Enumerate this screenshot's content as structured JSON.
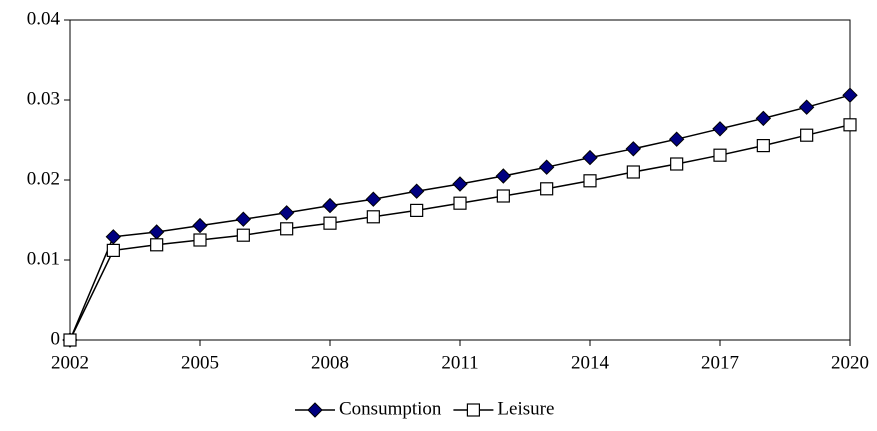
{
  "chart_data": {
    "type": "line",
    "x": [
      2002,
      2003,
      2004,
      2005,
      2006,
      2007,
      2008,
      2009,
      2010,
      2011,
      2012,
      2013,
      2014,
      2015,
      2016,
      2017,
      2018,
      2019,
      2020
    ],
    "series": [
      {
        "name": "Consumption",
        "color": "#000080",
        "marker": "diamond",
        "values": [
          0,
          0.0129,
          0.0135,
          0.0143,
          0.0151,
          0.0159,
          0.0168,
          0.0176,
          0.0186,
          0.0195,
          0.0205,
          0.0216,
          0.0228,
          0.0239,
          0.0251,
          0.0264,
          0.0277,
          0.0291,
          0.0306
        ]
      },
      {
        "name": "Leisure",
        "color": "#ffffff",
        "marker": "square",
        "values": [
          0,
          0.0112,
          0.0119,
          0.0125,
          0.0131,
          0.0139,
          0.0146,
          0.0154,
          0.0162,
          0.0171,
          0.018,
          0.0189,
          0.0199,
          0.021,
          0.022,
          0.0231,
          0.0243,
          0.0256,
          0.0269
        ]
      }
    ],
    "xlim": [
      2002,
      2020
    ],
    "xticks": [
      2002,
      2005,
      2008,
      2011,
      2014,
      2017,
      2020
    ],
    "ylim": [
      0,
      0.04
    ],
    "yticks": [
      0,
      0.01,
      0.02,
      0.03,
      0.04
    ],
    "legend": "bottom"
  }
}
